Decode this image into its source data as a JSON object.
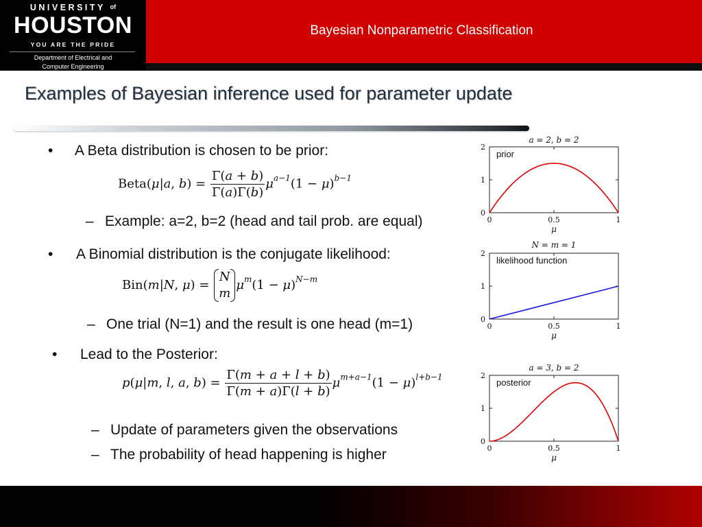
{
  "header": {
    "logo": {
      "university": "UNIVERSITY",
      "of": "of",
      "name": "HOUSTON",
      "tagline": "YOU ARE THE PRIDE",
      "department_line1": "Department of Electrical and",
      "department_line2": "Computer Engineering"
    },
    "title": "Bayesian Nonparametric Classification"
  },
  "slide": {
    "title": "Examples of Bayesian inference used for parameter update",
    "bullets": [
      {
        "text": "A Beta distribution is chosen to be prior:"
      },
      {
        "text": "A Binomial distribution is the conjugate likelihood:"
      },
      {
        "text": "Lead to the Posterior:"
      }
    ],
    "bullet_glyph": "•",
    "sub_dash": "–",
    "subs": [
      "Example: a=2, b=2 (head and tail prob. are equal)",
      "One trial (N=1) and the result is one head (m=1)",
      "Update of parameters given the observations",
      "The probability of head happening is higher"
    ]
  },
  "plots": {
    "axes": {
      "xlim": [
        0,
        1
      ],
      "ylim": [
        0,
        2
      ],
      "x_ticks": [
        "0",
        "0.5",
        "1"
      ],
      "y_ticks": [
        "0",
        "1",
        "2"
      ],
      "xlabel": "μ"
    },
    "prior": {
      "caption": "a = 2, b = 2",
      "label": "prior",
      "color": "#e00000"
    },
    "likelihood": {
      "caption": "N = m = 1",
      "label": "likelihood function",
      "color": "#1a1ae0"
    },
    "posterior": {
      "caption": "a = 3, b = 2",
      "label": "posterior",
      "color": "#e00000"
    }
  },
  "chart_data": [
    {
      "type": "line",
      "title": "a = 2, b = 2",
      "xlabel": "μ",
      "xlim": [
        0,
        1
      ],
      "ylim": [
        0,
        2
      ],
      "series": [
        {
          "name": "prior",
          "x": [
            0,
            0.1,
            0.2,
            0.3,
            0.4,
            0.5,
            0.6,
            0.7,
            0.8,
            0.9,
            1
          ],
          "values": [
            0,
            0.54,
            0.96,
            1.26,
            1.44,
            1.5,
            1.44,
            1.26,
            0.96,
            0.54,
            0
          ]
        }
      ]
    },
    {
      "type": "line",
      "title": "N = m = 1",
      "xlabel": "μ",
      "xlim": [
        0,
        1
      ],
      "ylim": [
        0,
        2
      ],
      "series": [
        {
          "name": "likelihood function",
          "x": [
            0,
            1
          ],
          "values": [
            0,
            1
          ]
        }
      ]
    },
    {
      "type": "line",
      "title": "a = 3, b = 2",
      "xlabel": "μ",
      "xlim": [
        0,
        1
      ],
      "ylim": [
        0,
        2
      ],
      "series": [
        {
          "name": "posterior",
          "x": [
            0,
            0.1,
            0.2,
            0.3,
            0.4,
            0.5,
            0.6,
            0.7,
            0.8,
            0.9,
            1
          ],
          "values": [
            0,
            0.108,
            0.384,
            0.756,
            1.152,
            1.5,
            1.728,
            1.764,
            1.536,
            0.972,
            0
          ]
        }
      ]
    }
  ]
}
